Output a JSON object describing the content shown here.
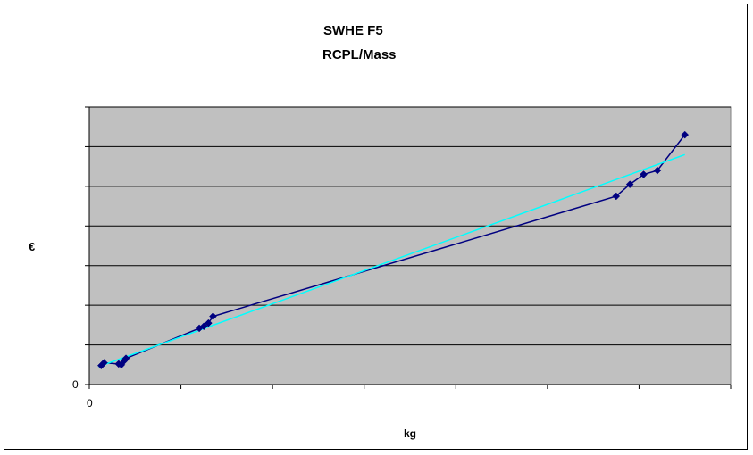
{
  "chart_data": {
    "type": "scatter",
    "title": "SWHE F5",
    "subtitle": "RCPL/Mass",
    "xlabel": "kg",
    "ylabel": "€",
    "x_tick_label_origin": "0",
    "y_tick_label_origin": "0",
    "xlim": [
      0,
      7
    ],
    "ylim": [
      0,
      7
    ],
    "grid": "horizontal",
    "legend": "none",
    "colors": {
      "plot_background": "#c0c0c0",
      "series": "#000080",
      "trendline": "#00ffff",
      "gridline": "#000000"
    },
    "series": [
      {
        "marker": "diamond",
        "points": [
          [
            0.13,
            0.48
          ],
          [
            0.16,
            0.55
          ],
          [
            0.32,
            0.52
          ],
          [
            0.35,
            0.5
          ],
          [
            0.38,
            0.6
          ],
          [
            0.4,
            0.66
          ],
          [
            1.2,
            1.42
          ],
          [
            1.25,
            1.47
          ],
          [
            1.3,
            1.55
          ],
          [
            1.35,
            1.72
          ],
          [
            5.75,
            4.75
          ],
          [
            5.9,
            5.05
          ],
          [
            6.05,
            5.3
          ],
          [
            6.2,
            5.4
          ],
          [
            6.5,
            6.3
          ]
        ]
      }
    ],
    "trendline": {
      "x": [
        0.1,
        6.5
      ],
      "y": [
        0.45,
        5.8
      ]
    }
  }
}
